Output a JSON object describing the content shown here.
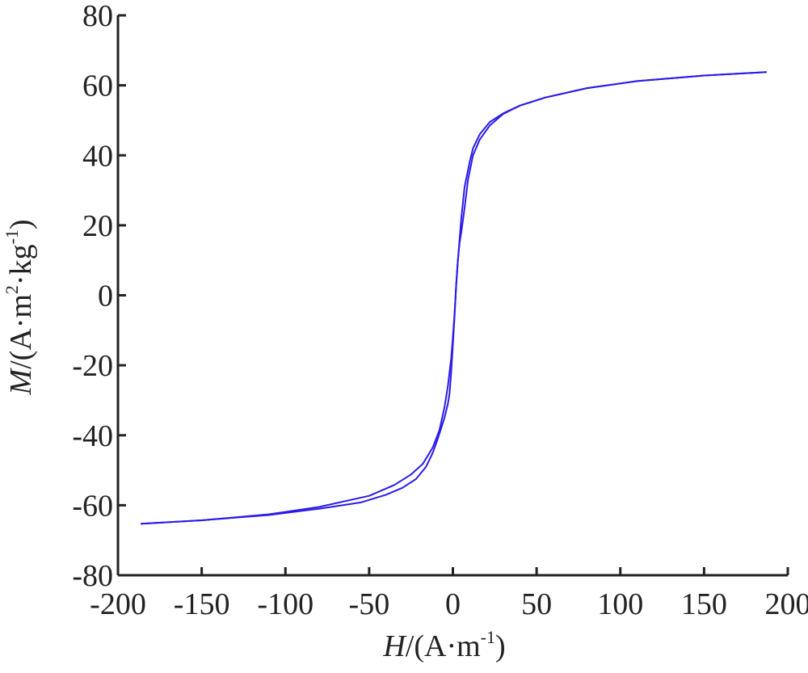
{
  "chart_data": {
    "type": "line",
    "title": "",
    "xlabel": {
      "symbol": "H",
      "unit_prefix": "/(A·m",
      "unit_sup": "-1",
      "unit_suffix": ")"
    },
    "ylabel": {
      "symbol": "M",
      "unit_prefix": "/(A·m",
      "unit_sup1": "2",
      "unit_mid": "·kg",
      "unit_sup2": "-1",
      "unit_suffix": ")"
    },
    "xlim": [
      -200,
      200
    ],
    "ylim": [
      -80,
      80
    ],
    "xticks": [
      "-200",
      "-150",
      "-100",
      "-50",
      "0",
      "50",
      "100",
      "150",
      "200"
    ],
    "yticks": [
      "80",
      "60",
      "40",
      "20",
      "0",
      "-20",
      "-40",
      "-60",
      "-80"
    ],
    "grid": false,
    "line_color": "#2b1be8",
    "series": [
      {
        "x": [
          -186,
          -150,
          -110,
          -80,
          -50,
          -35,
          -25,
          -18,
          -12,
          -8,
          -5,
          -3,
          -1,
          0,
          1,
          2,
          3,
          5,
          7,
          10,
          12,
          16,
          22,
          30,
          40,
          55,
          80,
          110,
          150,
          187
        ],
        "y": [
          -65.3,
          -64.3,
          -62.6,
          -60.5,
          -57.3,
          -54.2,
          -51.2,
          -48.2,
          -43.5,
          -38.5,
          -32,
          -26,
          -18,
          -12,
          -5,
          3,
          10,
          22,
          31,
          38,
          42,
          46,
          49.5,
          52,
          54.2,
          56.5,
          59.2,
          61.2,
          62.8,
          63.8
        ]
      },
      {
        "x": [
          187,
          150,
          110,
          80,
          55,
          40,
          30,
          22,
          16,
          12,
          9,
          7,
          5,
          4,
          3,
          2,
          1,
          0,
          -1,
          -2,
          -3,
          -5,
          -7,
          -9,
          -12,
          -16,
          -22,
          -30,
          -40,
          -55,
          -80,
          -110,
          -150,
          -186
        ],
        "y": [
          63.8,
          62.8,
          61.2,
          59.2,
          56.5,
          54.2,
          51.8,
          48.5,
          44.5,
          40,
          33,
          25,
          18,
          15,
          10,
          3,
          -6,
          -14,
          -22,
          -28,
          -31,
          -35,
          -38,
          -41,
          -45,
          -49,
          -52.5,
          -55,
          -57,
          -59.2,
          -61,
          -62.8,
          -64.3,
          -65.3
        ]
      }
    ]
  }
}
